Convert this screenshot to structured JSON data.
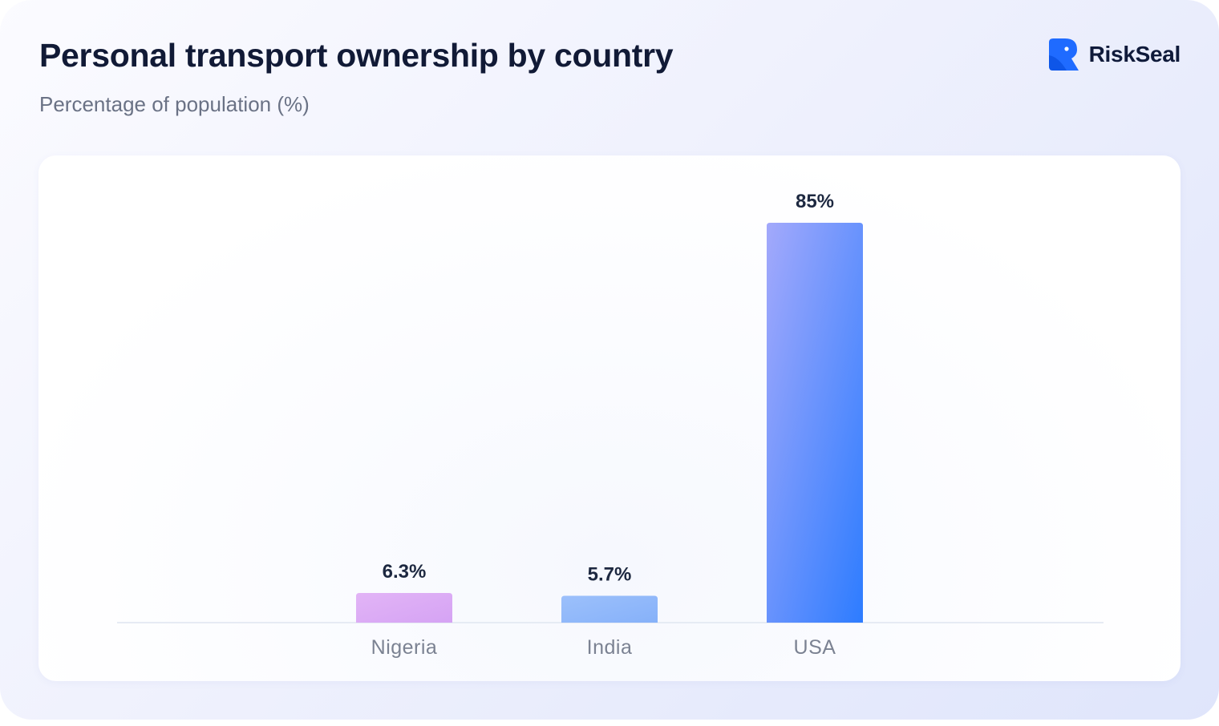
{
  "header": {
    "title": "Personal transport ownership by country",
    "subtitle": "Percentage of population (%)"
  },
  "brand": {
    "name": "RiskSeal",
    "logo_icon": "riskseal-logo-icon",
    "color": "#1f6bff"
  },
  "chart_data": {
    "type": "bar",
    "categories": [
      "Nigeria",
      "India",
      "USA"
    ],
    "values": [
      6.3,
      5.7,
      85
    ],
    "value_labels": [
      "6.3%",
      "5.7%",
      "85%"
    ],
    "title": "Personal transport ownership by country",
    "subtitle": "Percentage of population (%)",
    "ylim": [
      0,
      85
    ],
    "grid": false,
    "legend": "none",
    "bar_colors": [
      [
        "#e2b4f6",
        "#d5a3f4"
      ],
      [
        "#9cc0fb",
        "#86b1f9"
      ],
      [
        "#a3a9fb",
        "#2d7cff"
      ]
    ],
    "baseline_color": "#e6ebf4"
  }
}
